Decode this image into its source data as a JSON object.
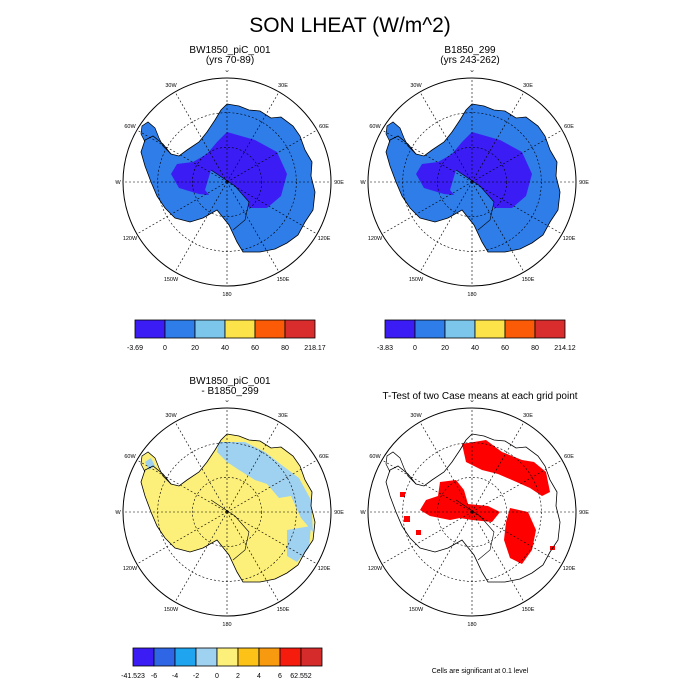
{
  "title": "SON LHEAT (W/m^2)",
  "lon_labels": [
    "0",
    "30E",
    "60E",
    "90E",
    "120E",
    "150E",
    "180",
    "150W",
    "120W",
    "90W",
    "60W",
    "30W"
  ],
  "panels": [
    {
      "title_line1": "BW1850_piC_001",
      "title_line2": "(yrs 70-89)"
    },
    {
      "title_line1": "B1850_299",
      "title_line2": "(yrs 243-262)"
    },
    {
      "title_line1": "BW1850_piC_001",
      "title_line2": "- B1850_299"
    },
    {
      "title_line1": "T-Test of two Case means at each grid point",
      "title_line2": ""
    }
  ],
  "colorbars": [
    {
      "colors": [
        "#3c1cf5",
        "#2e7de8",
        "#7cc6ec",
        "#fde34a",
        "#fb5a07",
        "#d92d2d"
      ],
      "labels": [
        "-3.69",
        "0",
        "20",
        "40",
        "60",
        "80",
        "218.17"
      ]
    },
    {
      "colors": [
        "#3c1cf5",
        "#2e7de8",
        "#7cc6ec",
        "#fde34a",
        "#fb5a07",
        "#d92d2d"
      ],
      "labels": [
        "-3.83",
        "0",
        "20",
        "40",
        "60",
        "80",
        "214.12"
      ]
    },
    {
      "colors": [
        "#3c1cf5",
        "#2e66e6",
        "#1fa4f0",
        "#9fd1f0",
        "#fdf07a",
        "#fdc218",
        "#f89a10",
        "#f51c0d",
        "#d52b2b"
      ],
      "labels": [
        "-41.523",
        "-6",
        "-4",
        "-2",
        "0",
        "2",
        "4",
        "6",
        "62.552"
      ]
    }
  ],
  "ttest_note": "Cells are significant at 0.1 level",
  "fill_colors": {
    "dark": "#3c1cf5",
    "mid": "#2e7de8",
    "diff_yellow": "#fdf07a",
    "diff_blue": "#9fd1f0",
    "sig_red": "#ff0000"
  }
}
